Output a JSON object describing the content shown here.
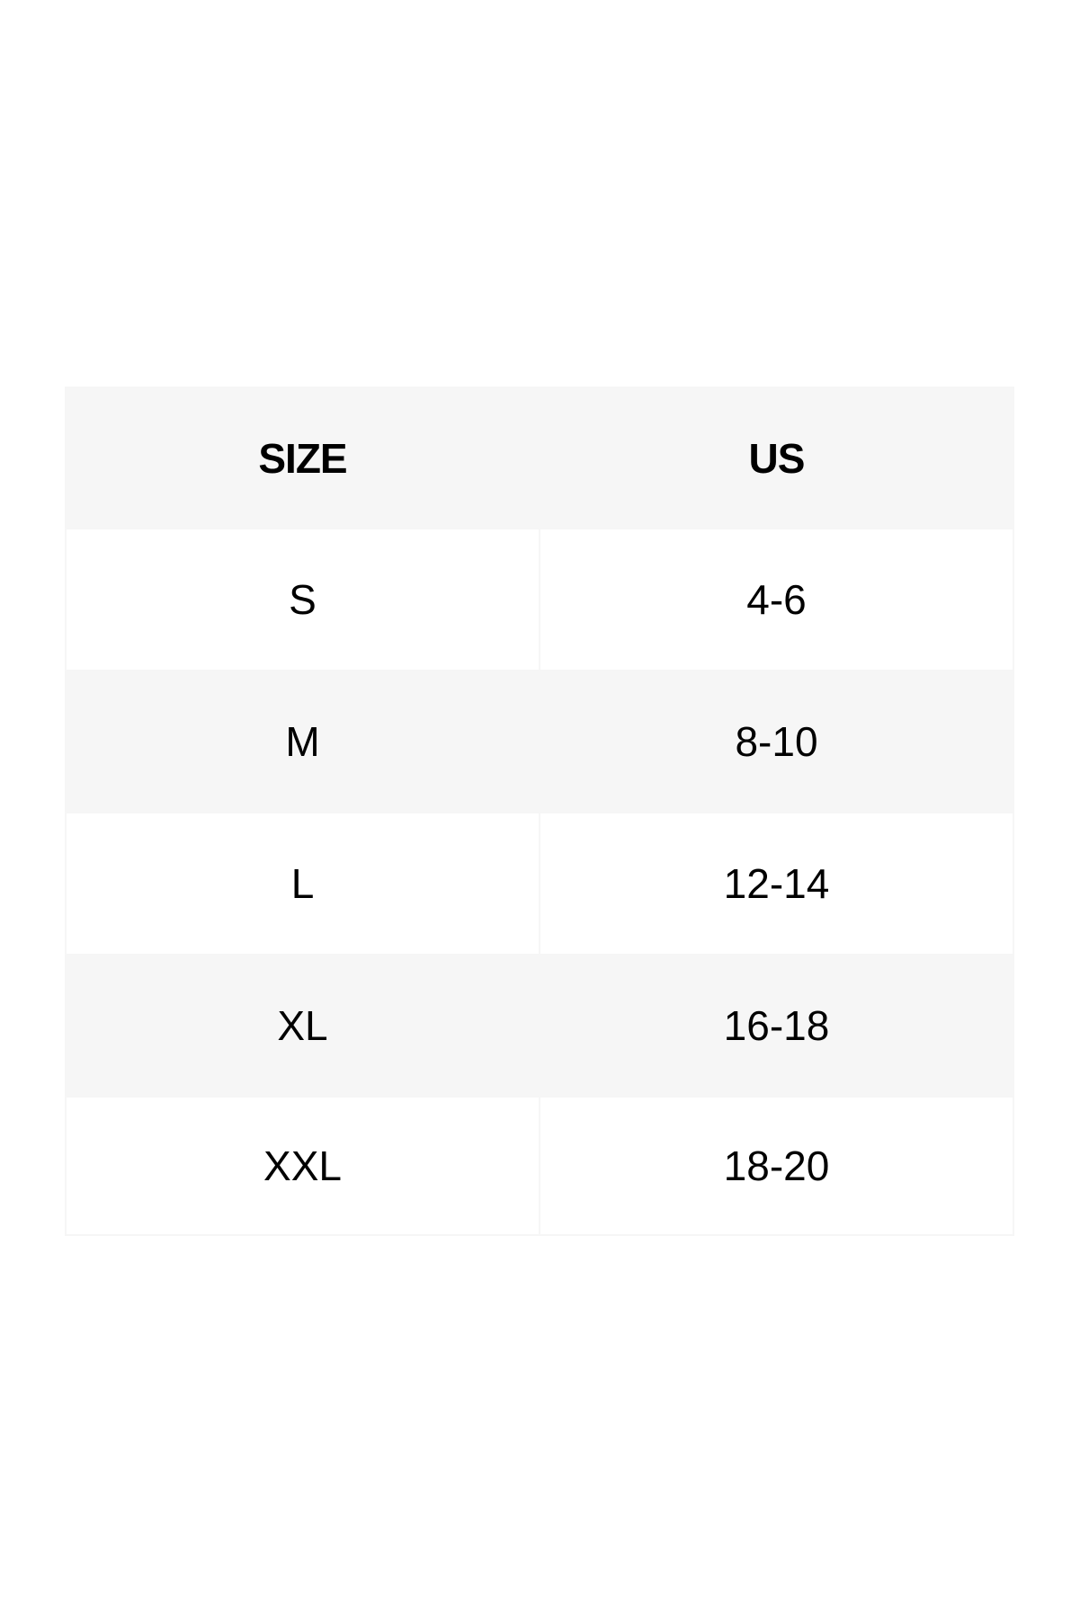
{
  "size_chart": {
    "headers": [
      "SIZE",
      "US"
    ],
    "rows": [
      [
        "S",
        "4-6"
      ],
      [
        "M",
        "8-10"
      ],
      [
        "L",
        "12-14"
      ],
      [
        "XL",
        "16-18"
      ],
      [
        "XXL",
        "18-20"
      ]
    ]
  },
  "colors": {
    "header_bg": "#f6f6f6",
    "stripe_bg": "#f6f6f6",
    "cell_bg": "#ffffff"
  }
}
